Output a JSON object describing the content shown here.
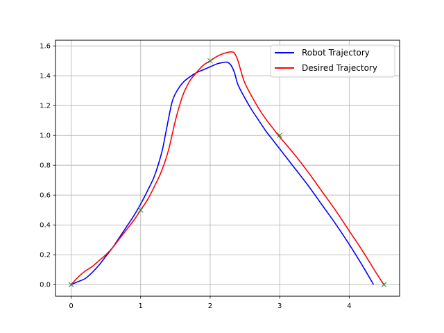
{
  "chart_data": {
    "type": "line",
    "title": "",
    "xlabel": "",
    "ylabel": "",
    "xlim": [
      -0.225,
      4.725
    ],
    "ylim": [
      -0.078,
      1.638
    ],
    "xticks": [
      0,
      1,
      2,
      3,
      4
    ],
    "yticks": [
      0.0,
      0.2,
      0.4,
      0.6,
      0.8,
      1.0,
      1.2,
      1.4,
      1.6
    ],
    "xtick_labels": [
      "0",
      "1",
      "2",
      "3",
      "4"
    ],
    "ytick_labels": [
      "0.0",
      "0.2",
      "0.4",
      "0.6",
      "0.8",
      "1.0",
      "1.2",
      "1.4",
      "1.6"
    ],
    "grid": true,
    "legend_position": "top-right",
    "series": [
      {
        "name": "Robot Trajectory",
        "color": "#0000ff",
        "x": [
          0.0,
          0.1,
          0.2,
          0.3,
          0.4,
          0.5,
          0.6,
          0.7,
          0.8,
          0.9,
          1.0,
          1.1,
          1.2,
          1.3,
          1.35,
          1.4,
          1.45,
          1.5,
          1.6,
          1.7,
          1.8,
          1.9,
          2.0,
          2.1,
          2.2,
          2.25,
          2.3,
          2.35,
          2.4,
          2.5,
          2.6,
          2.7,
          2.8,
          2.9,
          3.0,
          3.2,
          3.4,
          3.6,
          3.8,
          4.0,
          4.2,
          4.35
        ],
        "y": [
          0.0,
          0.02,
          0.04,
          0.08,
          0.13,
          0.19,
          0.25,
          0.32,
          0.39,
          0.46,
          0.54,
          0.63,
          0.73,
          0.88,
          0.99,
          1.11,
          1.22,
          1.28,
          1.35,
          1.39,
          1.42,
          1.44,
          1.46,
          1.48,
          1.49,
          1.49,
          1.47,
          1.42,
          1.34,
          1.25,
          1.17,
          1.1,
          1.03,
          0.97,
          0.91,
          0.79,
          0.67,
          0.54,
          0.41,
          0.27,
          0.12,
          0.0
        ]
      },
      {
        "name": "Desired Trajectory",
        "color": "#ff0000",
        "x": [
          0.0,
          0.1,
          0.2,
          0.3,
          0.4,
          0.5,
          0.6,
          0.7,
          0.8,
          0.9,
          1.0,
          1.1,
          1.2,
          1.3,
          1.4,
          1.5,
          1.6,
          1.7,
          1.8,
          1.9,
          2.0,
          2.1,
          2.2,
          2.3,
          2.35,
          2.4,
          2.45,
          2.5,
          2.6,
          2.7,
          2.8,
          2.9,
          3.0,
          3.2,
          3.4,
          3.6,
          3.8,
          4.0,
          4.2,
          4.4,
          4.5
        ],
        "y": [
          0.0,
          0.05,
          0.09,
          0.12,
          0.16,
          0.2,
          0.25,
          0.31,
          0.37,
          0.43,
          0.5,
          0.57,
          0.66,
          0.76,
          0.9,
          1.1,
          1.26,
          1.36,
          1.42,
          1.47,
          1.5,
          1.53,
          1.55,
          1.56,
          1.55,
          1.5,
          1.42,
          1.35,
          1.26,
          1.18,
          1.11,
          1.05,
          0.99,
          0.88,
          0.76,
          0.63,
          0.5,
          0.36,
          0.22,
          0.07,
          0.0
        ]
      }
    ],
    "waypoints": {
      "color": "#2e7d32",
      "marker": "x",
      "x": [
        0,
        1,
        2,
        3,
        4.5
      ],
      "y": [
        0.0,
        0.5,
        1.5,
        1.0,
        0.0
      ]
    }
  }
}
